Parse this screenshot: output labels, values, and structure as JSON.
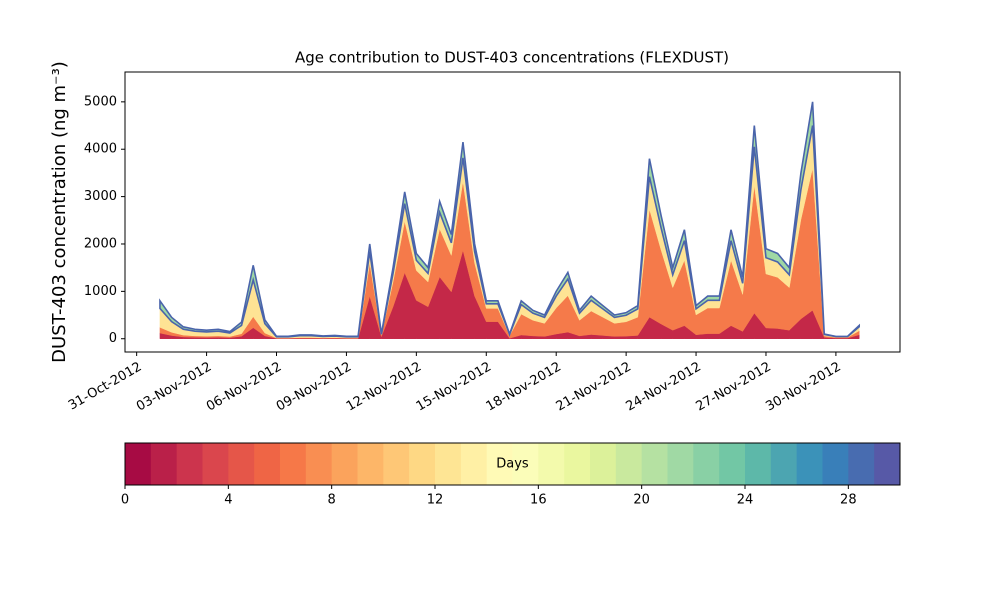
{
  "chart_data": [
    {
      "type": "stacked_area",
      "title": "Age contribution to DUST-403 concentrations (FLEXDUST)",
      "ylabel": "DUST-403 concentration (ng m⁻³)",
      "x": [
        "2012-11-01 00:00",
        "2012-11-01 12:00",
        "2012-11-02 00:00",
        "2012-11-02 12:00",
        "2012-11-03 00:00",
        "2012-11-03 12:00",
        "2012-11-04 00:00",
        "2012-11-04 12:00",
        "2012-11-05 00:00",
        "2012-11-05 12:00",
        "2012-11-06 00:00",
        "2012-11-06 12:00",
        "2012-11-07 00:00",
        "2012-11-07 12:00",
        "2012-11-08 00:00",
        "2012-11-08 12:00",
        "2012-11-09 00:00",
        "2012-11-09 12:00",
        "2012-11-10 00:00",
        "2012-11-10 12:00",
        "2012-11-11 00:00",
        "2012-11-11 12:00",
        "2012-11-12 00:00",
        "2012-11-12 12:00",
        "2012-11-13 00:00",
        "2012-11-13 12:00",
        "2012-11-14 00:00",
        "2012-11-14 12:00",
        "2012-11-15 00:00",
        "2012-11-15 12:00",
        "2012-11-16 00:00",
        "2012-11-16 12:00",
        "2012-11-17 00:00",
        "2012-11-17 12:00",
        "2012-11-18 00:00",
        "2012-11-18 12:00",
        "2012-11-19 00:00",
        "2012-11-19 12:00",
        "2012-11-20 00:00",
        "2012-11-20 12:00",
        "2012-11-21 00:00",
        "2012-11-21 12:00",
        "2012-11-22 00:00",
        "2012-11-22 12:00",
        "2012-11-23 00:00",
        "2012-11-23 12:00",
        "2012-11-24 00:00",
        "2012-11-24 12:00",
        "2012-11-25 00:00",
        "2012-11-25 12:00",
        "2012-11-26 00:00",
        "2012-11-26 12:00",
        "2012-11-27 00:00",
        "2012-11-27 12:00",
        "2012-11-28 00:00",
        "2012-11-28 12:00",
        "2012-11-29 00:00",
        "2012-11-29 12:00",
        "2012-11-30 00:00",
        "2012-11-30 12:00",
        "2012-12-01 00:00"
      ],
      "series": [
        {
          "color": "#c42848",
          "values": [
            120,
            68,
            38,
            30,
            27,
            30,
            23,
            53,
            233,
            60,
            8,
            8,
            12,
            12,
            9,
            11,
            8,
            8,
            900,
            45,
            675,
            1395,
            810,
            675,
            1305,
            990,
            1868,
            900,
            360,
            360,
            10,
            80,
            60,
            50,
            100,
            140,
            60,
            90,
            70,
            50,
            55,
            70,
            456,
            312,
            180,
            276,
            84,
            108,
            108,
            276,
            156,
            540,
            228,
            216,
            180,
            420,
            600,
            30,
            15,
            15,
            84
          ]
        },
        {
          "color": "#f57a4a",
          "values": [
            120,
            68,
            38,
            30,
            27,
            30,
            23,
            53,
            233,
            60,
            8,
            8,
            12,
            12,
            9,
            11,
            8,
            8,
            700,
            35,
            525,
            1085,
            630,
            525,
            1015,
            770,
            1453,
            700,
            280,
            280,
            55,
            440,
            330,
            275,
            550,
            770,
            330,
            495,
            385,
            275,
            303,
            385,
            2280,
            1560,
            900,
            1380,
            420,
            540,
            540,
            1380,
            780,
            2700,
            1140,
            1080,
            900,
            2100,
            3000,
            30,
            15,
            15,
            84
          ]
        },
        {
          "color": "#fee394",
          "values": [
            400,
            225,
            125,
            100,
            90,
            100,
            75,
            175,
            775,
            200,
            25,
            25,
            40,
            40,
            30,
            35,
            25,
            25,
            240,
            12,
            180,
            372,
            216,
            180,
            348,
            264,
            498,
            240,
            96,
            96,
            25,
            200,
            150,
            125,
            250,
            350,
            150,
            225,
            175,
            125,
            138,
            175,
            684,
            468,
            270,
            414,
            126,
            162,
            162,
            414,
            234,
            810,
            342,
            324,
            270,
            630,
            900,
            30,
            15,
            15,
            84
          ]
        },
        {
          "color": "#9fd8a4",
          "values": [
            160,
            90,
            50,
            40,
            36,
            40,
            30,
            70,
            310,
            80,
            10,
            10,
            16,
            16,
            12,
            14,
            10,
            10,
            160,
            8,
            120,
            248,
            144,
            120,
            232,
            176,
            332,
            160,
            64,
            64,
            10,
            80,
            60,
            50,
            100,
            140,
            60,
            90,
            70,
            50,
            55,
            70,
            380,
            260,
            150,
            230,
            70,
            90,
            90,
            230,
            130,
            450,
            190,
            180,
            150,
            350,
            500,
            10,
            5,
            5,
            28
          ]
        }
      ],
      "edge_color": "#4a64ab",
      "xlim": [
        "2012-10-30 12:00",
        "2012-12-02 18:00"
      ],
      "xticks": [
        {
          "value": "2012-10-31 00:00",
          "label": "31-Oct-2012"
        },
        {
          "value": "2012-11-03 00:00",
          "label": "03-Nov-2012"
        },
        {
          "value": "2012-11-06 00:00",
          "label": "06-Nov-2012"
        },
        {
          "value": "2012-11-09 00:00",
          "label": "09-Nov-2012"
        },
        {
          "value": "2012-11-12 00:00",
          "label": "12-Nov-2012"
        },
        {
          "value": "2012-11-15 00:00",
          "label": "15-Nov-2012"
        },
        {
          "value": "2012-11-18 00:00",
          "label": "18-Nov-2012"
        },
        {
          "value": "2012-11-21 00:00",
          "label": "21-Nov-2012"
        },
        {
          "value": "2012-11-24 00:00",
          "label": "24-Nov-2012"
        },
        {
          "value": "2012-11-27 00:00",
          "label": "27-Nov-2012"
        },
        {
          "value": "2012-11-30 00:00",
          "label": "30-Nov-2012"
        }
      ],
      "ylim": [
        -280,
        5630
      ],
      "yticks": [
        0,
        1000,
        2000,
        3000,
        4000,
        5000
      ]
    },
    {
      "type": "colorbar",
      "label": "Days",
      "bins": [
        0,
        1,
        2,
        3,
        4,
        5,
        6,
        7,
        8,
        9,
        10,
        11,
        12,
        13,
        14,
        15,
        16,
        17,
        18,
        19,
        20,
        21,
        22,
        23,
        24,
        25,
        26,
        27,
        28,
        29,
        30
      ],
      "colors": [
        "#a70b44",
        "#ba2049",
        "#cc344d",
        "#da464d",
        "#e55649",
        "#ef6545",
        "#f67848",
        "#f98e52",
        "#fba35c",
        "#fdb668",
        "#fec776",
        "#fed884",
        "#fee594",
        "#fff0a5",
        "#fffab6",
        "#fbfdb9",
        "#f3faac",
        "#eaf79f",
        "#dcf19a",
        "#c9e99e",
        "#b5e1a2",
        "#a0d9a4",
        "#89d0a5",
        "#72c7a5",
        "#5db8a9",
        "#4ca5b1",
        "#3b92b9",
        "#397fb9",
        "#486cb0",
        "#5759a7"
      ],
      "xlim": [
        0,
        30
      ],
      "xticks": [
        0,
        4,
        8,
        12,
        16,
        20,
        24,
        28
      ]
    }
  ]
}
